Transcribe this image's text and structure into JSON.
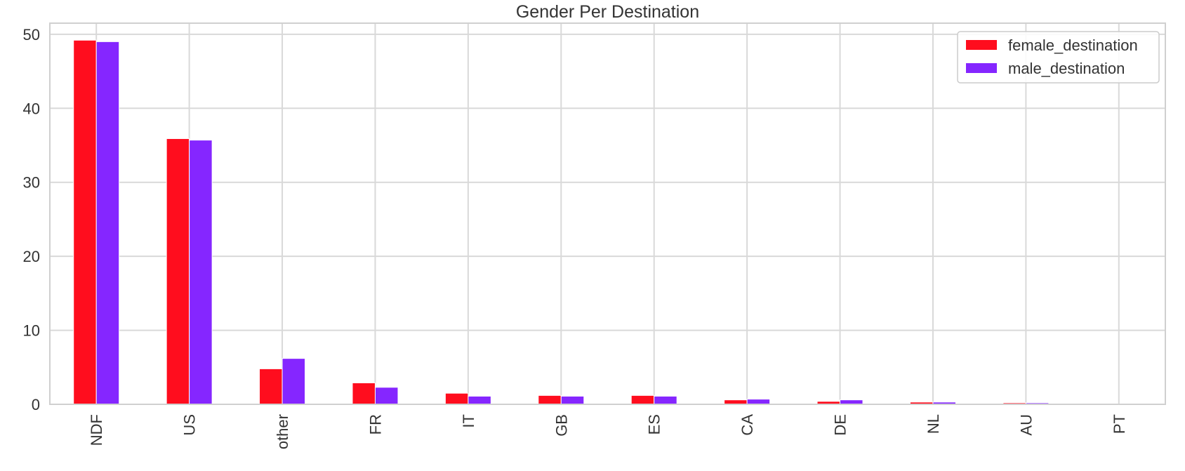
{
  "chart_data": {
    "type": "bar",
    "title": "Gender Per Destination",
    "xlabel": "",
    "ylabel": "",
    "categories": [
      "NDF",
      "US",
      "other",
      "FR",
      "IT",
      "GB",
      "ES",
      "CA",
      "DE",
      "NL",
      "AU",
      "PT"
    ],
    "series": [
      {
        "name": "female_destination",
        "color": "#ff0d1e",
        "values": [
          49.2,
          35.9,
          4.8,
          2.9,
          1.5,
          1.2,
          1.2,
          0.6,
          0.4,
          0.3,
          0.2,
          0.05
        ]
      },
      {
        "name": "male_destination",
        "color": "#8526ff",
        "values": [
          49.0,
          35.7,
          6.2,
          2.3,
          1.1,
          1.1,
          1.1,
          0.7,
          0.6,
          0.3,
          0.2,
          0.05
        ]
      }
    ],
    "ylim": [
      0,
      51.5
    ],
    "yticks": [
      0,
      10,
      20,
      30,
      40,
      50
    ],
    "xtick_rotation": "vertical",
    "grid": true,
    "legend_position": "upper-right",
    "colors": {
      "grid": "#d9d9d9",
      "frame": "#d0d0d0",
      "text": "#333333"
    }
  }
}
